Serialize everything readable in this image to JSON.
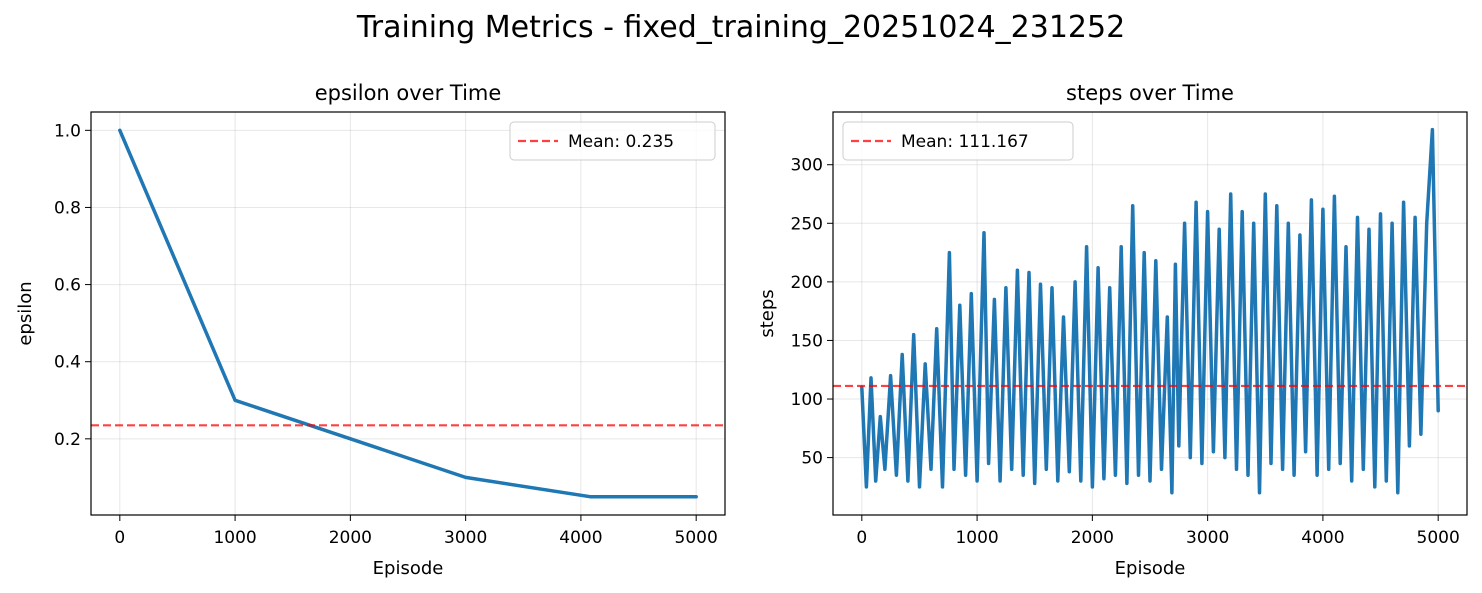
{
  "figure": {
    "title": "Training Metrics - fixed_training_20251024_231252"
  },
  "colors": {
    "series": "#1f77b4",
    "mean_line": "#ff0000",
    "grid": "#b0b0b0",
    "legend_border": "#cccccc"
  },
  "chart_data": [
    {
      "type": "line",
      "title": "epsilon over Time",
      "xlabel": "Episode",
      "ylabel": "epsilon",
      "xlim": [
        -250,
        5250
      ],
      "ylim": [
        0.0025,
        1.0475
      ],
      "xticks": [
        0,
        1000,
        2000,
        3000,
        4000,
        5000
      ],
      "xtick_labels": [
        "0",
        "1000",
        "2000",
        "3000",
        "4000",
        "5000"
      ],
      "yticks": [
        0.2,
        0.4,
        0.6,
        0.8,
        1.0
      ],
      "ytick_labels": [
        "0.2",
        "0.4",
        "0.6",
        "0.8",
        "1.0"
      ],
      "grid": true,
      "legend_position": "upper right",
      "series": [
        {
          "x": [
            0,
            1000,
            2000,
            3000,
            4080,
            5000
          ],
          "y": [
            1.0,
            0.3,
            0.2,
            0.1,
            0.05,
            0.05
          ]
        }
      ],
      "mean_line": {
        "value": 0.235,
        "label": "Mean: 0.235"
      }
    },
    {
      "type": "line",
      "title": "steps over Time",
      "xlabel": "Episode",
      "ylabel": "steps",
      "xlim": [
        -250,
        5250
      ],
      "ylim": [
        1,
        345
      ],
      "xticks": [
        0,
        1000,
        2000,
        3000,
        4000,
        5000
      ],
      "xtick_labels": [
        "0",
        "1000",
        "2000",
        "3000",
        "4000",
        "5000"
      ],
      "yticks": [
        50,
        100,
        150,
        200,
        250,
        300
      ],
      "ytick_labels": [
        "50",
        "100",
        "150",
        "200",
        "250",
        "300"
      ],
      "grid": true,
      "legend_position": "upper left",
      "series": [
        {
          "x": [
            0,
            40,
            80,
            120,
            160,
            200,
            250,
            300,
            350,
            400,
            450,
            500,
            550,
            600,
            650,
            700,
            760,
            800,
            850,
            900,
            950,
            1000,
            1060,
            1100,
            1150,
            1200,
            1250,
            1300,
            1350,
            1400,
            1450,
            1500,
            1550,
            1600,
            1650,
            1700,
            1750,
            1800,
            1850,
            1900,
            1950,
            2000,
            2050,
            2100,
            2150,
            2200,
            2250,
            2300,
            2350,
            2400,
            2450,
            2500,
            2550,
            2600,
            2650,
            2690,
            2720,
            2750,
            2800,
            2850,
            2900,
            2950,
            3000,
            3050,
            3100,
            3150,
            3200,
            3250,
            3300,
            3350,
            3400,
            3450,
            3500,
            3550,
            3600,
            3650,
            3700,
            3750,
            3800,
            3850,
            3900,
            3950,
            4000,
            4050,
            4100,
            4150,
            4200,
            4250,
            4300,
            4350,
            4400,
            4450,
            4500,
            4550,
            4600,
            4650,
            4700,
            4750,
            4800,
            4850,
            4900,
            4950,
            5000
          ],
          "y": [
            110,
            25,
            118,
            30,
            85,
            40,
            120,
            35,
            138,
            30,
            155,
            25,
            130,
            40,
            160,
            25,
            225,
            40,
            180,
            35,
            190,
            30,
            242,
            45,
            185,
            30,
            195,
            40,
            210,
            35,
            208,
            28,
            198,
            40,
            195,
            30,
            170,
            38,
            200,
            30,
            230,
            25,
            212,
            32,
            195,
            35,
            230,
            28,
            265,
            35,
            225,
            30,
            218,
            40,
            170,
            20,
            215,
            60,
            250,
            50,
            268,
            45,
            260,
            55,
            245,
            50,
            275,
            40,
            260,
            35,
            250,
            20,
            275,
            45,
            265,
            40,
            250,
            35,
            240,
            55,
            270,
            35,
            262,
            40,
            273,
            45,
            230,
            30,
            255,
            40,
            245,
            25,
            258,
            30,
            250,
            20,
            268,
            60,
            255,
            70,
            250,
            330,
            90
          ]
        }
      ],
      "mean_line": {
        "value": 111.167,
        "label": "Mean: 111.167"
      }
    }
  ]
}
